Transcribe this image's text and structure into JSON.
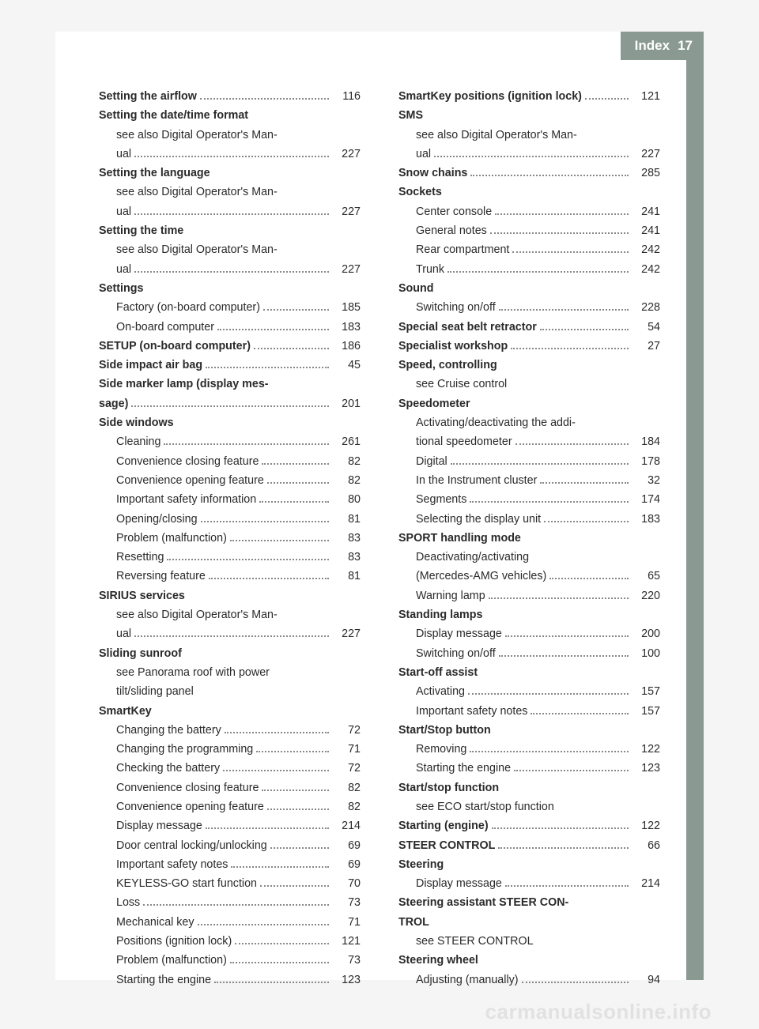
{
  "header": {
    "title": "Index",
    "page_number": "17"
  },
  "watermark": "carmanualsonline.info",
  "entries": [
    {
      "type": "line",
      "bold": true,
      "indent": 0,
      "text": "Setting the airflow",
      "page": "116"
    },
    {
      "type": "head",
      "bold": true,
      "indent": 0,
      "text": "Setting the date/time format"
    },
    {
      "type": "head",
      "bold": false,
      "indent": 1,
      "text": "see also Digital Operator's Man-"
    },
    {
      "type": "line",
      "bold": false,
      "indent": 1,
      "text": "ual",
      "page": "227"
    },
    {
      "type": "head",
      "bold": true,
      "indent": 0,
      "text": "Setting the language"
    },
    {
      "type": "head",
      "bold": false,
      "indent": 1,
      "text": "see also Digital Operator's Man-"
    },
    {
      "type": "line",
      "bold": false,
      "indent": 1,
      "text": "ual",
      "page": "227"
    },
    {
      "type": "head",
      "bold": true,
      "indent": 0,
      "text": "Setting the time"
    },
    {
      "type": "head",
      "bold": false,
      "indent": 1,
      "text": "see also Digital Operator's Man-"
    },
    {
      "type": "line",
      "bold": false,
      "indent": 1,
      "text": "ual",
      "page": "227"
    },
    {
      "type": "head",
      "bold": true,
      "indent": 0,
      "text": "Settings"
    },
    {
      "type": "line",
      "bold": false,
      "indent": 1,
      "text": "Factory (on-board computer)",
      "page": "185"
    },
    {
      "type": "line",
      "bold": false,
      "indent": 1,
      "text": "On-board computer",
      "page": "183"
    },
    {
      "type": "line",
      "bold": true,
      "indent": 0,
      "text": "SETUP (on-board computer)",
      "page": "186"
    },
    {
      "type": "line",
      "bold": true,
      "indent": 0,
      "text": "Side impact air bag",
      "page": "45"
    },
    {
      "type": "head",
      "bold": true,
      "indent": 0,
      "text": "Side marker lamp (display mes-"
    },
    {
      "type": "line",
      "bold": true,
      "indent": 0,
      "text": "sage)",
      "page": "201"
    },
    {
      "type": "head",
      "bold": true,
      "indent": 0,
      "text": "Side windows"
    },
    {
      "type": "line",
      "bold": false,
      "indent": 1,
      "text": "Cleaning",
      "page": "261"
    },
    {
      "type": "line",
      "bold": false,
      "indent": 1,
      "text": "Convenience closing feature",
      "page": "82"
    },
    {
      "type": "line",
      "bold": false,
      "indent": 1,
      "text": "Convenience opening feature",
      "page": "82"
    },
    {
      "type": "line",
      "bold": false,
      "indent": 1,
      "text": "Important safety information",
      "page": "80"
    },
    {
      "type": "line",
      "bold": false,
      "indent": 1,
      "text": "Opening/closing",
      "page": "81"
    },
    {
      "type": "line",
      "bold": false,
      "indent": 1,
      "text": "Problem (malfunction)",
      "page": "83"
    },
    {
      "type": "line",
      "bold": false,
      "indent": 1,
      "text": "Resetting",
      "page": "83"
    },
    {
      "type": "line",
      "bold": false,
      "indent": 1,
      "text": "Reversing feature",
      "page": "81"
    },
    {
      "type": "head",
      "bold": true,
      "indent": 0,
      "text": "SIRIUS services"
    },
    {
      "type": "head",
      "bold": false,
      "indent": 1,
      "text": "see also Digital Operator's Man-"
    },
    {
      "type": "line",
      "bold": false,
      "indent": 1,
      "text": "ual",
      "page": "227"
    },
    {
      "type": "head",
      "bold": true,
      "indent": 0,
      "text": "Sliding sunroof"
    },
    {
      "type": "head",
      "bold": false,
      "indent": 1,
      "text": "see Panorama roof with power"
    },
    {
      "type": "head",
      "bold": false,
      "indent": 1,
      "text": "tilt/sliding panel"
    },
    {
      "type": "head",
      "bold": true,
      "indent": 0,
      "text": "SmartKey"
    },
    {
      "type": "line",
      "bold": false,
      "indent": 1,
      "text": "Changing the battery",
      "page": "72"
    },
    {
      "type": "line",
      "bold": false,
      "indent": 1,
      "text": "Changing the programming",
      "page": "71"
    },
    {
      "type": "line",
      "bold": false,
      "indent": 1,
      "text": "Checking the battery",
      "page": "72"
    },
    {
      "type": "line",
      "bold": false,
      "indent": 1,
      "text": "Convenience closing feature",
      "page": "82"
    },
    {
      "type": "line",
      "bold": false,
      "indent": 1,
      "text": "Convenience opening feature",
      "page": "82"
    },
    {
      "type": "line",
      "bold": false,
      "indent": 1,
      "text": "Display message",
      "page": "214"
    },
    {
      "type": "line",
      "bold": false,
      "indent": 1,
      "text": "Door central locking/unlocking",
      "page": "69"
    },
    {
      "type": "line",
      "bold": false,
      "indent": 1,
      "text": "Important safety notes",
      "page": "69"
    },
    {
      "type": "line",
      "bold": false,
      "indent": 1,
      "text": "KEYLESS-GO start function",
      "page": "70"
    },
    {
      "type": "line",
      "bold": false,
      "indent": 1,
      "text": "Loss",
      "page": "73"
    },
    {
      "type": "line",
      "bold": false,
      "indent": 1,
      "text": "Mechanical key",
      "page": "71"
    },
    {
      "type": "line",
      "bold": false,
      "indent": 1,
      "text": "Positions (ignition lock)",
      "page": "121"
    },
    {
      "type": "line",
      "bold": false,
      "indent": 1,
      "text": "Problem (malfunction)",
      "page": "73"
    },
    {
      "type": "line",
      "bold": false,
      "indent": 1,
      "text": "Starting the engine",
      "page": "123"
    },
    {
      "type": "line",
      "bold": true,
      "indent": 0,
      "text": "SmartKey positions (ignition lock)",
      "page": "121"
    },
    {
      "type": "head",
      "bold": true,
      "indent": 0,
      "text": "SMS"
    },
    {
      "type": "head",
      "bold": false,
      "indent": 1,
      "text": "see also Digital Operator's Man-"
    },
    {
      "type": "line",
      "bold": false,
      "indent": 1,
      "text": "ual",
      "page": "227"
    },
    {
      "type": "line",
      "bold": true,
      "indent": 0,
      "text": "Snow chains",
      "page": "285"
    },
    {
      "type": "head",
      "bold": true,
      "indent": 0,
      "text": "Sockets"
    },
    {
      "type": "line",
      "bold": false,
      "indent": 1,
      "text": "Center console",
      "page": "241"
    },
    {
      "type": "line",
      "bold": false,
      "indent": 1,
      "text": "General notes",
      "page": "241"
    },
    {
      "type": "line",
      "bold": false,
      "indent": 1,
      "text": "Rear compartment",
      "page": "242"
    },
    {
      "type": "line",
      "bold": false,
      "indent": 1,
      "text": "Trunk",
      "page": "242"
    },
    {
      "type": "head",
      "bold": true,
      "indent": 0,
      "text": "Sound"
    },
    {
      "type": "line",
      "bold": false,
      "indent": 1,
      "text": "Switching on/off",
      "page": "228"
    },
    {
      "type": "line",
      "bold": true,
      "indent": 0,
      "text": "Special seat belt retractor",
      "page": "54"
    },
    {
      "type": "line",
      "bold": true,
      "indent": 0,
      "text": "Specialist workshop",
      "page": "27"
    },
    {
      "type": "head",
      "bold": true,
      "indent": 0,
      "text": "Speed, controlling"
    },
    {
      "type": "head",
      "bold": false,
      "indent": 1,
      "text": "see Cruise control"
    },
    {
      "type": "head",
      "bold": true,
      "indent": 0,
      "text": "Speedometer"
    },
    {
      "type": "head",
      "bold": false,
      "indent": 1,
      "text": "Activating/deactivating the addi-"
    },
    {
      "type": "line",
      "bold": false,
      "indent": 1,
      "text": "tional speedometer",
      "page": "184"
    },
    {
      "type": "line",
      "bold": false,
      "indent": 1,
      "text": "Digital",
      "page": "178"
    },
    {
      "type": "line",
      "bold": false,
      "indent": 1,
      "text": "In the Instrument cluster",
      "page": "32"
    },
    {
      "type": "line",
      "bold": false,
      "indent": 1,
      "text": "Segments",
      "page": "174"
    },
    {
      "type": "line",
      "bold": false,
      "indent": 1,
      "text": "Selecting the display unit",
      "page": "183"
    },
    {
      "type": "head",
      "bold": true,
      "indent": 0,
      "text": "SPORT handling mode"
    },
    {
      "type": "head",
      "bold": false,
      "indent": 1,
      "text": "Deactivating/activating"
    },
    {
      "type": "line",
      "bold": false,
      "indent": 1,
      "text": "(Mercedes-AMG vehicles)",
      "page": "65"
    },
    {
      "type": "line",
      "bold": false,
      "indent": 1,
      "text": "Warning lamp",
      "page": "220"
    },
    {
      "type": "head",
      "bold": true,
      "indent": 0,
      "text": "Standing lamps"
    },
    {
      "type": "line",
      "bold": false,
      "indent": 1,
      "text": "Display message",
      "page": "200"
    },
    {
      "type": "line",
      "bold": false,
      "indent": 1,
      "text": "Switching on/off",
      "page": "100"
    },
    {
      "type": "head",
      "bold": true,
      "indent": 0,
      "text": "Start-off assist"
    },
    {
      "type": "line",
      "bold": false,
      "indent": 1,
      "text": "Activating",
      "page": "157"
    },
    {
      "type": "line",
      "bold": false,
      "indent": 1,
      "text": "Important safety notes",
      "page": "157"
    },
    {
      "type": "head",
      "bold": true,
      "indent": 0,
      "text": "Start/Stop button"
    },
    {
      "type": "line",
      "bold": false,
      "indent": 1,
      "text": "Removing",
      "page": "122"
    },
    {
      "type": "line",
      "bold": false,
      "indent": 1,
      "text": "Starting the engine",
      "page": "123"
    },
    {
      "type": "head",
      "bold": true,
      "indent": 0,
      "text": "Start/stop function"
    },
    {
      "type": "head",
      "bold": false,
      "indent": 1,
      "text": "see ECO start/stop function"
    },
    {
      "type": "line",
      "bold": true,
      "indent": 0,
      "text": "Starting (engine)",
      "page": "122"
    },
    {
      "type": "line",
      "bold": true,
      "indent": 0,
      "text": "STEER CONTROL",
      "page": "66"
    },
    {
      "type": "head",
      "bold": true,
      "indent": 0,
      "text": "Steering"
    },
    {
      "type": "line",
      "bold": false,
      "indent": 1,
      "text": "Display message",
      "page": "214"
    },
    {
      "type": "head",
      "bold": true,
      "indent": 0,
      "text": "Steering assistant STEER CON-"
    },
    {
      "type": "head",
      "bold": true,
      "indent": 0,
      "text": "TROL"
    },
    {
      "type": "head",
      "bold": false,
      "indent": 1,
      "text": "see STEER CONTROL"
    },
    {
      "type": "head",
      "bold": true,
      "indent": 0,
      "text": "Steering wheel"
    },
    {
      "type": "line",
      "bold": false,
      "indent": 1,
      "text": "Adjusting (manually)",
      "page": "94"
    }
  ]
}
